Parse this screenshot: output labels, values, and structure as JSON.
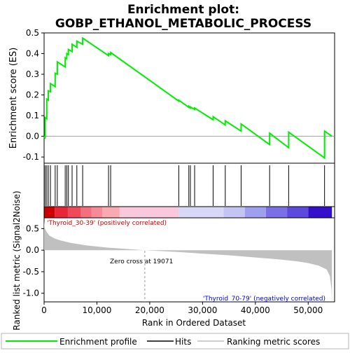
{
  "title_line1": "Enrichment plot:",
  "title_line2": "GOBP_ETHANOL_METABOLIC_PROCESS",
  "top_ylabel": "Enrichment score (ES)",
  "bottom_ylabel": "Ranked list metric (Signal2Noise)",
  "xlabel": "Rank in Ordered Dataset",
  "pos_label": "'Thyroid_30-39' (positively correlated)",
  "neg_label": "'Thyroid_70-79' (negatively correlated)",
  "zero_cross_label": "Zero cross at 19071",
  "legend": {
    "enrichment": "Enrichment profile",
    "hits": "Hits",
    "metric": "Ranking metric scores"
  },
  "colors": {
    "enrichment_line": "#00ee00",
    "hit_line": "#000000",
    "metric_fill": "#c0c0c0",
    "pos_label": "#cc0000",
    "neg_label": "#0000cc"
  },
  "chart_data": {
    "type": "line",
    "x_range": [
      0,
      55000
    ],
    "es_ylim": [
      -0.13,
      0.5
    ],
    "es_yticks": [
      -0.1,
      0.0,
      0.1,
      0.2,
      0.3,
      0.4,
      0.5
    ],
    "metric_ylim": [
      -1.2,
      0.75
    ],
    "metric_yticks": [
      -1.0,
      -0.5,
      0.0,
      0.5
    ],
    "xticks": [
      0,
      10000,
      20000,
      30000,
      40000,
      50000
    ],
    "xtick_labels": [
      "0",
      "10,000",
      "20,000",
      "30,000",
      "40,000",
      "50,000"
    ],
    "zero_cross": 19071,
    "n_genes": 54500,
    "hits": [
      200,
      500,
      800,
      1200,
      2100,
      2500,
      4000,
      4300,
      4600,
      5300,
      6200,
      7300,
      12200,
      12600,
      25500,
      27400,
      27700,
      28500,
      32000,
      34300,
      37300,
      42700,
      46300,
      53100
    ],
    "es_curve": [
      {
        "x": 0,
        "y": 0.0
      },
      {
        "x": 200,
        "y": -0.01
      },
      {
        "x": 200,
        "y": 0.09
      },
      {
        "x": 500,
        "y": 0.085
      },
      {
        "x": 500,
        "y": 0.18
      },
      {
        "x": 800,
        "y": 0.175
      },
      {
        "x": 800,
        "y": 0.22
      },
      {
        "x": 1200,
        "y": 0.215
      },
      {
        "x": 1200,
        "y": 0.255
      },
      {
        "x": 2100,
        "y": 0.24
      },
      {
        "x": 2100,
        "y": 0.305
      },
      {
        "x": 2500,
        "y": 0.3
      },
      {
        "x": 2500,
        "y": 0.36
      },
      {
        "x": 4000,
        "y": 0.335
      },
      {
        "x": 4000,
        "y": 0.38
      },
      {
        "x": 4300,
        "y": 0.375
      },
      {
        "x": 4300,
        "y": 0.4
      },
      {
        "x": 4600,
        "y": 0.395
      },
      {
        "x": 4600,
        "y": 0.42
      },
      {
        "x": 5300,
        "y": 0.41
      },
      {
        "x": 5300,
        "y": 0.445
      },
      {
        "x": 6200,
        "y": 0.43
      },
      {
        "x": 6200,
        "y": 0.46
      },
      {
        "x": 7300,
        "y": 0.445
      },
      {
        "x": 7300,
        "y": 0.475
      },
      {
        "x": 12200,
        "y": 0.39
      },
      {
        "x": 12200,
        "y": 0.4
      },
      {
        "x": 12600,
        "y": 0.395
      },
      {
        "x": 12600,
        "y": 0.405
      },
      {
        "x": 25500,
        "y": 0.17
      },
      {
        "x": 25500,
        "y": 0.175
      },
      {
        "x": 27400,
        "y": 0.14
      },
      {
        "x": 27400,
        "y": 0.145
      },
      {
        "x": 27700,
        "y": 0.138
      },
      {
        "x": 27700,
        "y": 0.142
      },
      {
        "x": 28500,
        "y": 0.13
      },
      {
        "x": 28500,
        "y": 0.137
      },
      {
        "x": 32000,
        "y": 0.08
      },
      {
        "x": 32000,
        "y": 0.095
      },
      {
        "x": 34300,
        "y": 0.055
      },
      {
        "x": 34300,
        "y": 0.075
      },
      {
        "x": 37300,
        "y": 0.025
      },
      {
        "x": 37300,
        "y": 0.06
      },
      {
        "x": 42700,
        "y": -0.04
      },
      {
        "x": 42700,
        "y": 0.015
      },
      {
        "x": 46300,
        "y": -0.055
      },
      {
        "x": 46300,
        "y": 0.02
      },
      {
        "x": 53100,
        "y": -0.105
      },
      {
        "x": 53100,
        "y": 0.025
      },
      {
        "x": 54500,
        "y": 0.0
      }
    ],
    "metric_curve": [
      {
        "x": 0,
        "y": 0.68
      },
      {
        "x": 100,
        "y": 0.52
      },
      {
        "x": 300,
        "y": 0.46
      },
      {
        "x": 600,
        "y": 0.4
      },
      {
        "x": 1000,
        "y": 0.34
      },
      {
        "x": 2000,
        "y": 0.27
      },
      {
        "x": 3000,
        "y": 0.23
      },
      {
        "x": 5000,
        "y": 0.17
      },
      {
        "x": 8000,
        "y": 0.11
      },
      {
        "x": 12000,
        "y": 0.06
      },
      {
        "x": 16000,
        "y": 0.025
      },
      {
        "x": 19071,
        "y": 0.0
      },
      {
        "x": 25000,
        "y": -0.04
      },
      {
        "x": 30000,
        "y": -0.08
      },
      {
        "x": 35000,
        "y": -0.12
      },
      {
        "x": 40000,
        "y": -0.17
      },
      {
        "x": 45000,
        "y": -0.22
      },
      {
        "x": 48000,
        "y": -0.26
      },
      {
        "x": 50000,
        "y": -0.3
      },
      {
        "x": 52000,
        "y": -0.36
      },
      {
        "x": 53500,
        "y": -0.45
      },
      {
        "x": 54100,
        "y": -0.6
      },
      {
        "x": 54400,
        "y": -0.9
      },
      {
        "x": 54500,
        "y": -1.2
      }
    ],
    "ranked_bar": [
      {
        "start": 0,
        "end": 2000,
        "color": "#cc0000"
      },
      {
        "start": 2000,
        "end": 4500,
        "color": "#e8263a"
      },
      {
        "start": 4500,
        "end": 7000,
        "color": "#ef4a5a"
      },
      {
        "start": 7000,
        "end": 9000,
        "color": "#f36f7e"
      },
      {
        "start": 9000,
        "end": 11000,
        "color": "#f78a96"
      },
      {
        "start": 11000,
        "end": 14300,
        "color": "#f9a9b2"
      },
      {
        "start": 14300,
        "end": 25500,
        "color": "#fac8dc"
      },
      {
        "start": 25500,
        "end": 34000,
        "color": "#d8d8f6"
      },
      {
        "start": 34000,
        "end": 38000,
        "color": "#c4c4f2"
      },
      {
        "start": 38000,
        "end": 42000,
        "color": "#9f9ff0"
      },
      {
        "start": 42000,
        "end": 46000,
        "color": "#7b6fe6"
      },
      {
        "start": 46000,
        "end": 50000,
        "color": "#5d49dc"
      },
      {
        "start": 50000,
        "end": 54500,
        "color": "#3410cc"
      }
    ]
  }
}
